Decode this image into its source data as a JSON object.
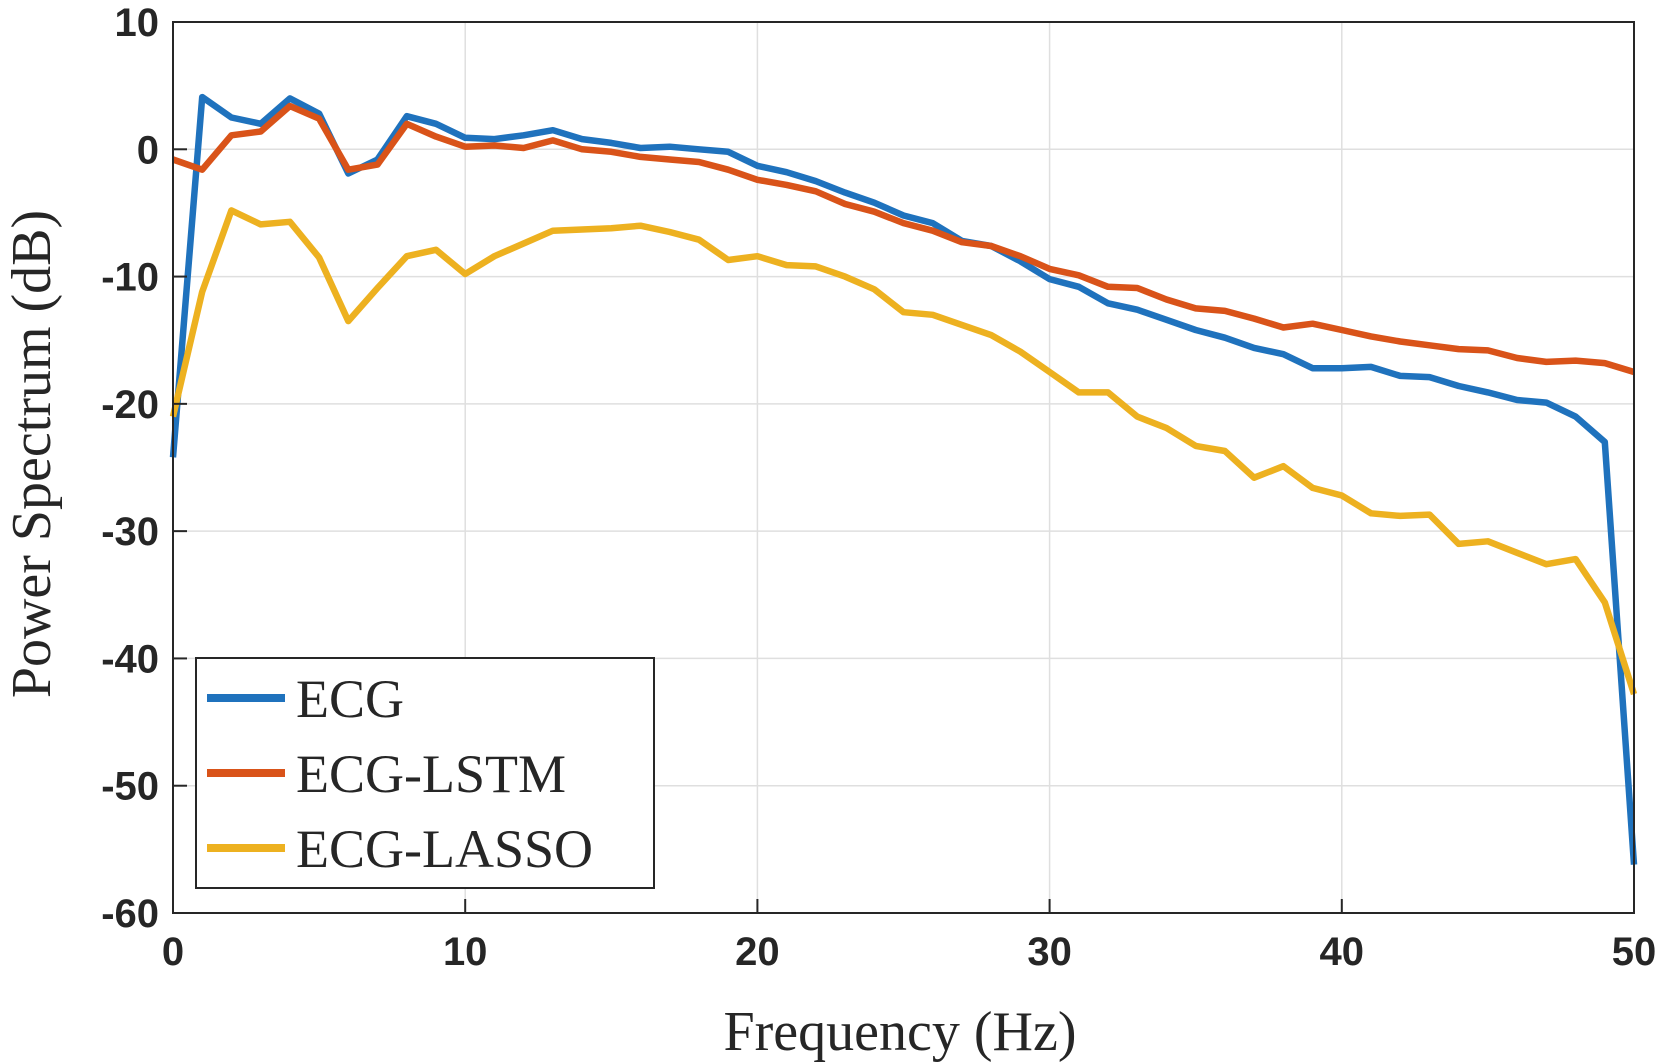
{
  "chart_data": {
    "type": "line",
    "title": "",
    "xlabel": "Frequency (Hz)",
    "ylabel": "Power Spectrum (dB)",
    "xlim": [
      0,
      50
    ],
    "ylim": [
      -60,
      10
    ],
    "xticks": [
      0,
      10,
      20,
      30,
      40,
      50
    ],
    "yticks": [
      10,
      0,
      -10,
      -20,
      -30,
      -40,
      -50,
      -60
    ],
    "grid": true,
    "legend_position": "bottom-left",
    "x": [
      0,
      1,
      2,
      3,
      4,
      5,
      6,
      7,
      8,
      9,
      10,
      11,
      12,
      13,
      14,
      15,
      16,
      17,
      18,
      19,
      20,
      21,
      22,
      23,
      24,
      25,
      26,
      27,
      28,
      29,
      30,
      31,
      32,
      33,
      34,
      35,
      36,
      37,
      38,
      39,
      40,
      41,
      42,
      43,
      44,
      45,
      46,
      47,
      48,
      49,
      50
    ],
    "series": [
      {
        "name": "ECG",
        "color": "#1f72bd",
        "values": [
          -24.2,
          4.1,
          2.5,
          2,
          4,
          2.8,
          -1.9,
          -0.8,
          2.6,
          2,
          0.9,
          0.8,
          1.1,
          1.5,
          0.8,
          0.5,
          0.1,
          0.2,
          0,
          -0.2,
          -1.3,
          -1.8,
          -2.5,
          -3.4,
          -4.2,
          -5.2,
          -5.8,
          -7.2,
          -7.6,
          -8.8,
          -10.2,
          -10.8,
          -12.1,
          -12.6,
          -13.4,
          -14.2,
          -14.8,
          -15.6,
          -16.1,
          -17.2,
          -17.2,
          -17.1,
          -17.8,
          -17.9,
          -18.6,
          -19.1,
          -19.7,
          -19.9,
          -21,
          -23,
          -56.2
        ]
      },
      {
        "name": "ECG-LSTM",
        "color": "#d95319",
        "values": [
          -0.8,
          -1.6,
          1.1,
          1.4,
          3.4,
          2.4,
          -1.6,
          -1.2,
          2,
          1,
          0.2,
          0.3,
          0.1,
          0.7,
          0,
          -0.2,
          -0.6,
          -0.8,
          -1,
          -1.6,
          -2.4,
          -2.8,
          -3.3,
          -4.3,
          -4.9,
          -5.8,
          -6.4,
          -7.3,
          -7.6,
          -8.4,
          -9.4,
          -9.9,
          -10.8,
          -10.9,
          -11.8,
          -12.5,
          -12.7,
          -13.3,
          -14,
          -13.7,
          -14.2,
          -14.7,
          -15.1,
          -15.4,
          -15.7,
          -15.8,
          -16.4,
          -16.7,
          -16.6,
          -16.8,
          -17.5
        ]
      },
      {
        "name": "ECG-LASSO",
        "color": "#edb120",
        "values": [
          -21,
          -11.2,
          -4.8,
          -5.9,
          -5.7,
          -8.5,
          -13.5,
          -10.9,
          -8.4,
          -7.9,
          -9.8,
          -8.4,
          -7.4,
          -6.4,
          -6.3,
          -6.2,
          -6,
          -6.5,
          -7.1,
          -8.7,
          -8.4,
          -9.1,
          -9.2,
          -10,
          -11,
          -12.8,
          -13,
          -13.8,
          -14.6,
          -15.9,
          -17.5,
          -19.1,
          -19.1,
          -21,
          -21.9,
          -23.3,
          -23.7,
          -25.8,
          -24.9,
          -26.6,
          -27.2,
          -28.6,
          -28.8,
          -28.7,
          -31,
          -30.8,
          -31.7,
          -32.6,
          -32.2,
          -35.6,
          -42.8
        ]
      }
    ]
  }
}
